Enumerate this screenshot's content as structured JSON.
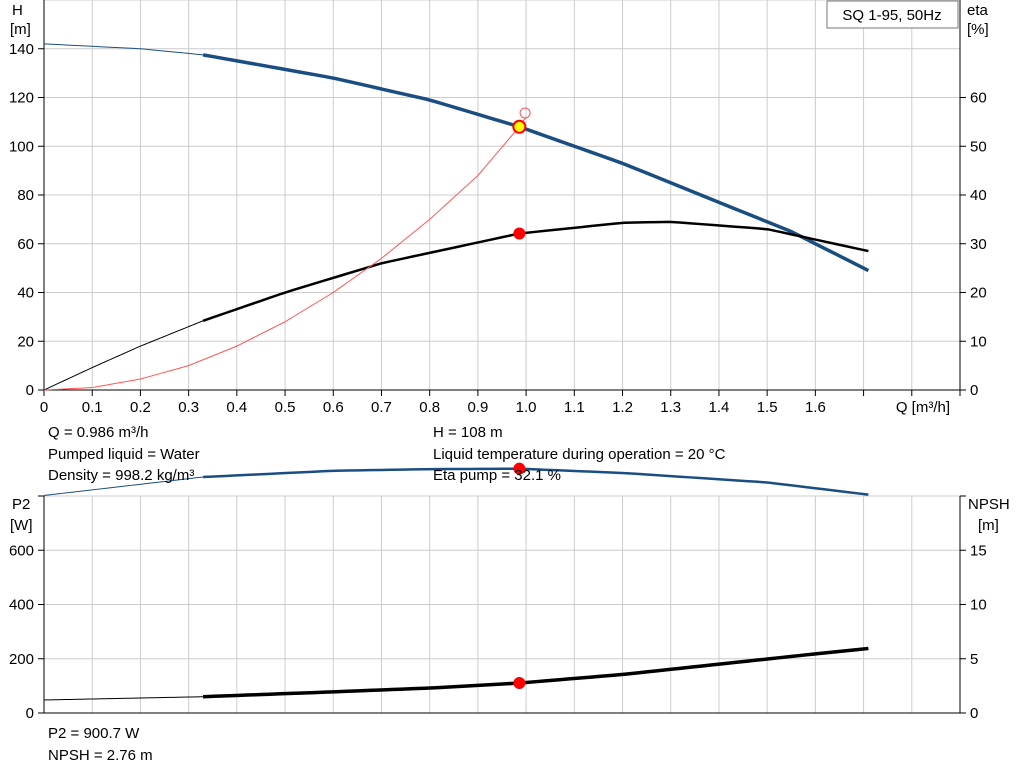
{
  "title": "SQ 1-95, 50Hz",
  "colors": {
    "head": "#1a4e82",
    "eta": "#000000",
    "op": "#ff0000",
    "eta_total": "#ff5555",
    "grid": "#cccccc"
  },
  "annotations": {
    "q": "Q = 0.986 m³/h",
    "h": "H = 108 m",
    "liquid": "Pumped liquid = Water",
    "temp": "Liquid temperature during operation = 20 °C",
    "density": "Density = 998.2 kg/m³",
    "eta": "Eta pump = 32.1 %",
    "p2": "P2 = 900.7 W",
    "npsh": "NPSH = 2.76 m"
  },
  "chart_data": [
    {
      "type": "line",
      "x_axis": {
        "label": "Q [m³/h]",
        "range": [
          0,
          1.9
        ],
        "ticks": [
          0,
          0.1,
          0.2,
          0.3,
          0.4,
          0.5,
          0.6,
          0.7,
          0.8,
          0.9,
          1.0,
          1.1,
          1.2,
          1.3,
          1.4,
          1.5,
          1.6
        ],
        "tick_labels": [
          "0",
          "0.1",
          "0.2",
          "0.3",
          "0.4",
          "0.5",
          "0.6",
          "0.7",
          "0.8",
          "0.9",
          "1.0",
          "1.1",
          "1.2",
          "1.3",
          "1.4",
          "1.5",
          "1.6"
        ]
      },
      "y_left": {
        "label_line1": "H",
        "label_line2": "[m]",
        "range": [
          0,
          160
        ],
        "ticks": [
          0,
          20,
          40,
          60,
          80,
          100,
          120,
          140
        ]
      },
      "y_right": {
        "label_line1": "eta",
        "label_line2": "[%]",
        "range": [
          0,
          80
        ],
        "ticks": [
          0,
          10,
          20,
          30,
          40,
          50,
          60
        ]
      },
      "grid": true,
      "series": [
        {
          "axis": "left",
          "q_start": 0,
          "q_op": 0.33,
          "q_end": 1.71,
          "x": [
            0,
            0.2,
            0.33,
            0.6,
            0.8,
            0.986,
            1.2,
            1.4,
            1.55,
            1.71
          ],
          "y": [
            142,
            140,
            137.5,
            128,
            119,
            108,
            93,
            77,
            65,
            49
          ]
        },
        {
          "axis": "right",
          "q_start": 0,
          "q_op": 0.33,
          "q_end": 1.71,
          "x": [
            0,
            0.1,
            0.2,
            0.33,
            0.5,
            0.7,
            0.986,
            1.2,
            1.3,
            1.5,
            1.71
          ],
          "y": [
            0,
            4.6,
            9,
            14.2,
            20,
            26,
            32.1,
            34.3,
            34.5,
            33,
            28.5
          ]
        },
        {
          "axis": "left",
          "q_start": 0,
          "q_op": 1.0,
          "q_end": 1.0,
          "x": [
            0,
            0.1,
            0.2,
            0.3,
            0.4,
            0.5,
            0.6,
            0.7,
            0.8,
            0.9,
            0.986,
            1.0
          ],
          "y": [
            0,
            1,
            4.5,
            10,
            18,
            28,
            40,
            54,
            70,
            88,
            108,
            112
          ]
        }
      ],
      "operating_points": [
        {
          "x": 0.986,
          "y": 108,
          "axis": "left",
          "style": "yellow"
        },
        {
          "x": 0.986,
          "y": 32.1,
          "axis": "right",
          "style": "red"
        }
      ],
      "open_marker": {
        "x": 1.0,
        "y": 112,
        "axis": "left"
      }
    },
    {
      "type": "line",
      "x_range": [
        0,
        1.9
      ],
      "y_left": {
        "label_line1": "P2",
        "label_line2": "[W]",
        "range": [
          0,
          800
        ],
        "ticks": [
          0,
          200,
          400,
          600
        ]
      },
      "y_right": {
        "label_line1": "NPSH",
        "label_line2": "[m]",
        "range": [
          0,
          20
        ],
        "ticks": [
          0,
          5,
          10,
          15
        ]
      },
      "grid": true,
      "series": [
        {
          "axis": "left",
          "q_start": 0,
          "q_op": 0.33,
          "q_end": 1.71,
          "x": [
            0,
            0.33,
            0.6,
            0.8,
            0.986,
            1.2,
            1.5,
            1.71
          ],
          "y": [
            802,
            870,
            893,
            899,
            900.7,
            885,
            850,
            805
          ]
        },
        {
          "axis": "right",
          "q_start": 0,
          "q_op": 0.33,
          "q_end": 1.71,
          "x": [
            0,
            0.33,
            0.6,
            0.8,
            0.986,
            1.2,
            1.4,
            1.6,
            1.71
          ],
          "y": [
            1.2,
            1.5,
            1.95,
            2.3,
            2.76,
            3.55,
            4.5,
            5.45,
            5.95
          ]
        }
      ],
      "operating_points": [
        {
          "x": 0.986,
          "y": 900.7,
          "axis": "left",
          "style": "red"
        },
        {
          "x": 0.986,
          "y": 2.76,
          "axis": "right",
          "style": "red"
        }
      ]
    }
  ]
}
